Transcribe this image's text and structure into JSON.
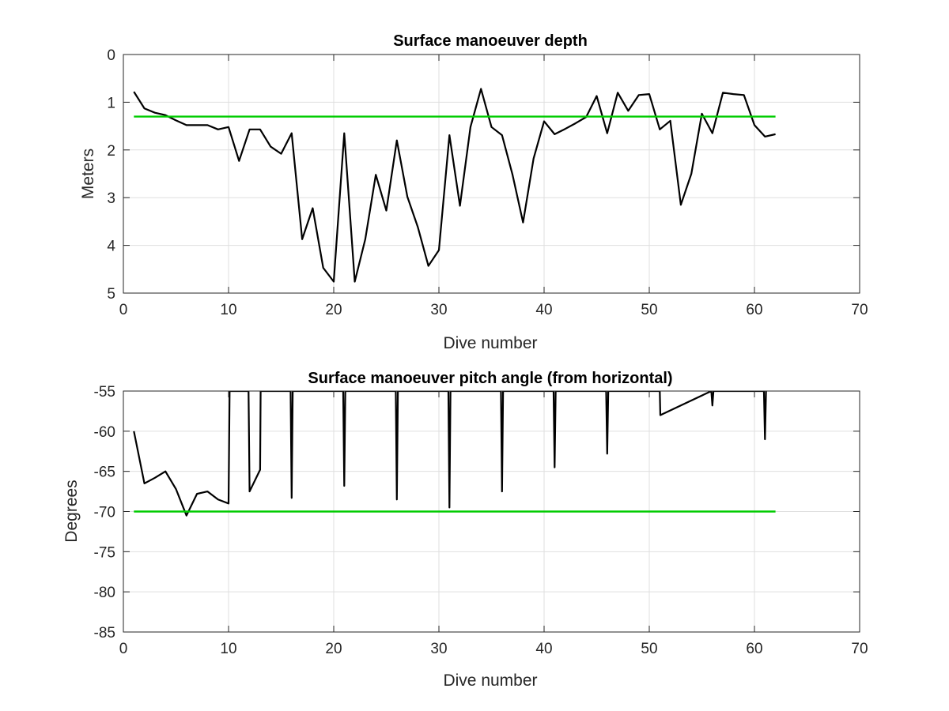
{
  "figure": {
    "background": "#ffffff"
  },
  "chart_data": [
    {
      "type": "line",
      "title": "Surface manoeuver depth",
      "xlabel": "Dive number",
      "ylabel": "Meters",
      "xlim": [
        0,
        70
      ],
      "ylim": [
        0,
        5
      ],
      "y_reversed": true,
      "grid": true,
      "xticks": [
        0,
        10,
        20,
        30,
        40,
        50,
        60,
        70
      ],
      "yticks": [
        0,
        1,
        2,
        3,
        4,
        5
      ],
      "series": [
        {
          "color": "#000000",
          "x": [
            1,
            2,
            3,
            4,
            5,
            6,
            7,
            8,
            9,
            10,
            11,
            12,
            13,
            14,
            15,
            16,
            17,
            18,
            19,
            20,
            21,
            22,
            23,
            24,
            25,
            26,
            27,
            28,
            29,
            30,
            31,
            32,
            33,
            34,
            35,
            36,
            37,
            38,
            39,
            40,
            41,
            42,
            43,
            44,
            45,
            46,
            47,
            48,
            49,
            50,
            51,
            52,
            53,
            54,
            55,
            56,
            57,
            58,
            59,
            60,
            61,
            62
          ],
          "y": [
            0.78,
            1.13,
            1.22,
            1.27,
            1.38,
            1.48,
            1.48,
            1.48,
            1.57,
            1.52,
            2.23,
            1.57,
            1.57,
            1.93,
            2.08,
            1.65,
            3.87,
            3.22,
            4.47,
            4.76,
            1.65,
            4.76,
            3.87,
            2.52,
            3.27,
            1.8,
            2.98,
            3.62,
            4.43,
            4.1,
            1.69,
            3.17,
            1.52,
            0.72,
            1.52,
            1.69,
            2.52,
            3.52,
            2.18,
            1.4,
            1.67,
            1.56,
            1.44,
            1.31,
            0.87,
            1.65,
            0.8,
            1.18,
            0.85,
            0.83,
            1.57,
            1.39,
            3.15,
            2.5,
            1.24,
            1.65,
            0.8,
            0.83,
            0.85,
            1.48,
            1.72,
            1.67
          ]
        },
        {
          "color": "#00cc00",
          "x": [
            1,
            62
          ],
          "y": [
            1.3,
            1.3
          ]
        }
      ]
    },
    {
      "type": "line",
      "title": "Surface manoeuver pitch angle (from horizontal)",
      "xlabel": "Dive number",
      "ylabel": "Degrees",
      "xlim": [
        0,
        70
      ],
      "ylim": [
        -85,
        -55
      ],
      "grid": true,
      "xticks": [
        0,
        10,
        20,
        30,
        40,
        50,
        60,
        70
      ],
      "yticks": [
        -55,
        -60,
        -65,
        -70,
        -75,
        -80,
        -85
      ],
      "series": [
        {
          "color": "#000000",
          "x": [
            1,
            2,
            3,
            4,
            5,
            6,
            7,
            8,
            9,
            10,
            10.1,
            11,
            11.9,
            12,
            13,
            13.05,
            15.9,
            16,
            16.1,
            20.9,
            21,
            21.1,
            25.9,
            26,
            26.1,
            30.9,
            31,
            31.1,
            35.9,
            36,
            36.1,
            40.9,
            41,
            41.1,
            45.9,
            46,
            46.1,
            51,
            51.05,
            55.9,
            56,
            56.1,
            60.9,
            61,
            61.1
          ],
          "x_comment_removed": true,
          "y": [
            -60,
            -66.5,
            -65.8,
            -65,
            -67.2,
            -70.5,
            -67.8,
            -67.5,
            -68.5,
            -69,
            -55,
            -55,
            -55,
            -67.5,
            -64.8,
            -55,
            -55,
            -68.3,
            -55,
            -55,
            -66.8,
            -55,
            -55,
            -68.5,
            -55,
            -55,
            -69.5,
            -55,
            -55,
            -67.5,
            -55,
            -55,
            -64.5,
            -55,
            -55,
            -62.8,
            -55,
            -55,
            -58,
            -55,
            -56.8,
            -55,
            -55,
            -61,
            -55
          ]
        },
        {
          "color": "#00cc00",
          "x": [
            1,
            62
          ],
          "y": [
            -70,
            -70
          ]
        }
      ]
    }
  ]
}
